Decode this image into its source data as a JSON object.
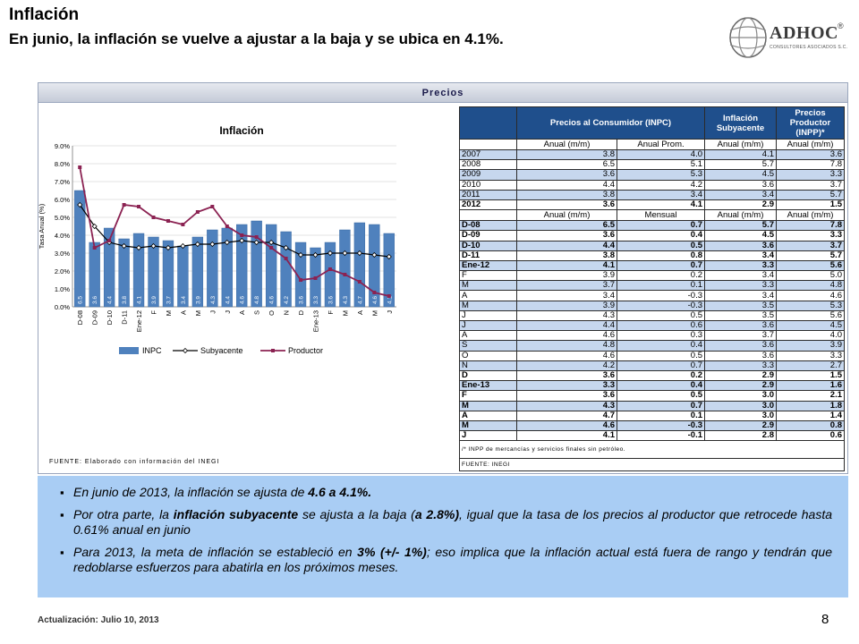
{
  "header": {
    "title": "Inflación",
    "subtitle": "En junio, la inflación se vuelve a ajustar a la baja  y se ubica en 4.1%."
  },
  "logo": {
    "name": "ADHOC",
    "reg": "®",
    "tagline": "CONSULTORES ASOCIADOS S.C."
  },
  "panel": {
    "title": "Precios",
    "source_left": "FUENTE: Elaborado con información del INEGI"
  },
  "chart_data": {
    "type": "bar",
    "title": "Inflación",
    "ylabel": "Tasa Anual (%)",
    "ylim": [
      0,
      9
    ],
    "yticks": [
      "0.0%",
      "1.0%",
      "2.0%",
      "3.0%",
      "4.0%",
      "5.0%",
      "6.0%",
      "7.0%",
      "8.0%",
      "9.0%"
    ],
    "categories": [
      "D-08",
      "D-09",
      "D-10",
      "D-11",
      "Ene-12",
      "F",
      "M",
      "A",
      "M",
      "J",
      "J",
      "A",
      "S",
      "O",
      "N",
      "D",
      "Ene-13",
      "F",
      "M",
      "A",
      "M",
      "J"
    ],
    "series": [
      {
        "name": "INPC",
        "kind": "bar",
        "color": "#4f81bd",
        "values": [
          6.5,
          3.6,
          4.4,
          3.8,
          4.1,
          3.9,
          3.7,
          3.4,
          3.9,
          4.3,
          4.4,
          4.6,
          4.8,
          4.6,
          4.2,
          3.6,
          3.3,
          3.6,
          4.3,
          4.7,
          4.6,
          4.1
        ],
        "labels": [
          "6.5",
          "3.6",
          "4.4",
          "3.8",
          "4.1",
          "3.9",
          "3.7",
          "3.4",
          "3.9",
          "4.3",
          "4.4",
          "4.6",
          "4.8",
          "4.6",
          "4.2",
          "3.6",
          "3.3",
          "3.6",
          "4.3",
          "4.7",
          "4.6",
          "4.1"
        ]
      },
      {
        "name": "Subyacente",
        "kind": "line",
        "color": "#000000",
        "values": [
          5.7,
          4.5,
          3.6,
          3.4,
          3.3,
          3.4,
          3.3,
          3.4,
          3.5,
          3.5,
          3.6,
          3.7,
          3.6,
          3.6,
          3.3,
          2.9,
          2.9,
          3.0,
          3.0,
          3.0,
          2.9,
          2.8
        ]
      },
      {
        "name": "Productor",
        "kind": "line",
        "color": "#8b2252",
        "values": [
          7.8,
          3.3,
          3.7,
          5.7,
          5.6,
          5.0,
          4.8,
          4.6,
          5.3,
          5.6,
          4.5,
          4.0,
          3.9,
          3.3,
          2.7,
          1.5,
          1.6,
          2.1,
          1.8,
          1.4,
          0.8,
          0.6
        ]
      }
    ],
    "legend": "bottom"
  },
  "table": {
    "headers": {
      "inpc": "Precios al Consumidor (INPC)",
      "sub": "Inflación Subyacente",
      "inpp": "Precios Productor (INPP)*"
    },
    "sub_a": {
      "c1": "Anual (m/m)",
      "c2": "Anual Prom.",
      "c3": "Anual (m/m)",
      "c4": "Anual (m/m)"
    },
    "annual": [
      {
        "label": "2007",
        "c1": "3.8",
        "c2": "4.0",
        "c3": "4.1",
        "c4": "3.6"
      },
      {
        "label": "2008",
        "c1": "6.5",
        "c2": "5.1",
        "c3": "5.7",
        "c4": "7.8"
      },
      {
        "label": "2009",
        "c1": "3.6",
        "c2": "5.3",
        "c3": "4.5",
        "c4": "3.3"
      },
      {
        "label": "2010",
        "c1": "4.4",
        "c2": "4.2",
        "c3": "3.6",
        "c4": "3.7"
      },
      {
        "label": "2011",
        "c1": "3.8",
        "c2": "3.4",
        "c3": "3.4",
        "c4": "5.7"
      },
      {
        "label": "2012",
        "c1": "3.6",
        "c2": "4.1",
        "c3": "2.9",
        "c4": "1.5"
      }
    ],
    "sub_b": {
      "c1": "Anual (m/m)",
      "c2": "Mensual",
      "c3": "Anual (m/m)",
      "c4": "Anual (m/m)"
    },
    "monthly": [
      {
        "label": "D-08",
        "c1": "6.5",
        "c2": "0.7",
        "c3": "5.7",
        "c4": "7.8"
      },
      {
        "label": "D-09",
        "c1": "3.6",
        "c2": "0.4",
        "c3": "4.5",
        "c4": "3.3"
      },
      {
        "label": "D-10",
        "c1": "4.4",
        "c2": "0.5",
        "c3": "3.6",
        "c4": "3.7"
      },
      {
        "label": "D-11",
        "c1": "3.8",
        "c2": "0.8",
        "c3": "3.4",
        "c4": "5.7"
      },
      {
        "label": "Ene-12",
        "c1": "4.1",
        "c2": "0.7",
        "c3": "3.3",
        "c4": "5.6"
      },
      {
        "label": "F",
        "c1": "3.9",
        "c2": "0.2",
        "c3": "3.4",
        "c4": "5.0"
      },
      {
        "label": "M",
        "c1": "3.7",
        "c2": "0.1",
        "c3": "3.3",
        "c4": "4.8"
      },
      {
        "label": "A",
        "c1": "3.4",
        "c2": "-0.3",
        "c3": "3.4",
        "c4": "4.6"
      },
      {
        "label": "M",
        "c1": "3.9",
        "c2": "-0.3",
        "c3": "3.5",
        "c4": "5.3"
      },
      {
        "label": "J",
        "c1": "4.3",
        "c2": "0.5",
        "c3": "3.5",
        "c4": "5.6"
      },
      {
        "label": "J",
        "c1": "4.4",
        "c2": "0.6",
        "c3": "3.6",
        "c4": "4.5"
      },
      {
        "label": "A",
        "c1": "4.6",
        "c2": "0.3",
        "c3": "3.7",
        "c4": "4.0"
      },
      {
        "label": "S",
        "c1": "4.8",
        "c2": "0.4",
        "c3": "3.6",
        "c4": "3.9"
      },
      {
        "label": "O",
        "c1": "4.6",
        "c2": "0.5",
        "c3": "3.6",
        "c4": "3.3"
      },
      {
        "label": "N",
        "c1": "4.2",
        "c2": "0.7",
        "c3": "3.3",
        "c4": "2.7"
      },
      {
        "label": "D",
        "c1": "3.6",
        "c2": "0.2",
        "c3": "2.9",
        "c4": "1.5"
      },
      {
        "label": "Ene-13",
        "c1": "3.3",
        "c2": "0.4",
        "c3": "2.9",
        "c4": "1.6"
      },
      {
        "label": "F",
        "c1": "3.6",
        "c2": "0.5",
        "c3": "3.0",
        "c4": "2.1"
      },
      {
        "label": "M",
        "c1": "4.3",
        "c2": "0.7",
        "c3": "3.0",
        "c4": "1.8"
      },
      {
        "label": "A",
        "c1": "4.7",
        "c2": "0.1",
        "c3": "3.0",
        "c4": "1.4"
      },
      {
        "label": "M",
        "c1": "4.6",
        "c2": "-0.3",
        "c3": "2.9",
        "c4": "0.8"
      },
      {
        "label": "J",
        "c1": "4.1",
        "c2": "-0.1",
        "c3": "2.8",
        "c4": "0.6"
      }
    ],
    "note": "/* INPP de mercancías y servicios finales sin petróleo.",
    "source": "FUENTE: INEGI"
  },
  "bullets": [
    {
      "pre": "En junio de 2013, la inflación se ajusta de ",
      "bold1": "4.6 a 4.1%.",
      "mid": "",
      "bold2": "",
      "post": ""
    },
    {
      "pre": "Por otra parte, la ",
      "bold1": "inflación subyacente",
      "mid": " se ajusta a la baja (",
      "bold2": "a 2.8%)",
      "post": ", igual que  la  tasa de los precios al productor que retrocede hasta 0.61% anual en junio"
    },
    {
      "pre": "Para 2013, la meta de inflación se estableció en ",
      "bold1": "3% (+/- 1%)",
      "mid": "; eso implica que la inflación actual está fuera de rango y tendrán que redoblarse esfuerzos para abatirla en los próximos meses.",
      "bold2": "",
      "post": ""
    }
  ],
  "footer": {
    "update": "Actualización:  Julio 10, 2013",
    "page": "8"
  }
}
